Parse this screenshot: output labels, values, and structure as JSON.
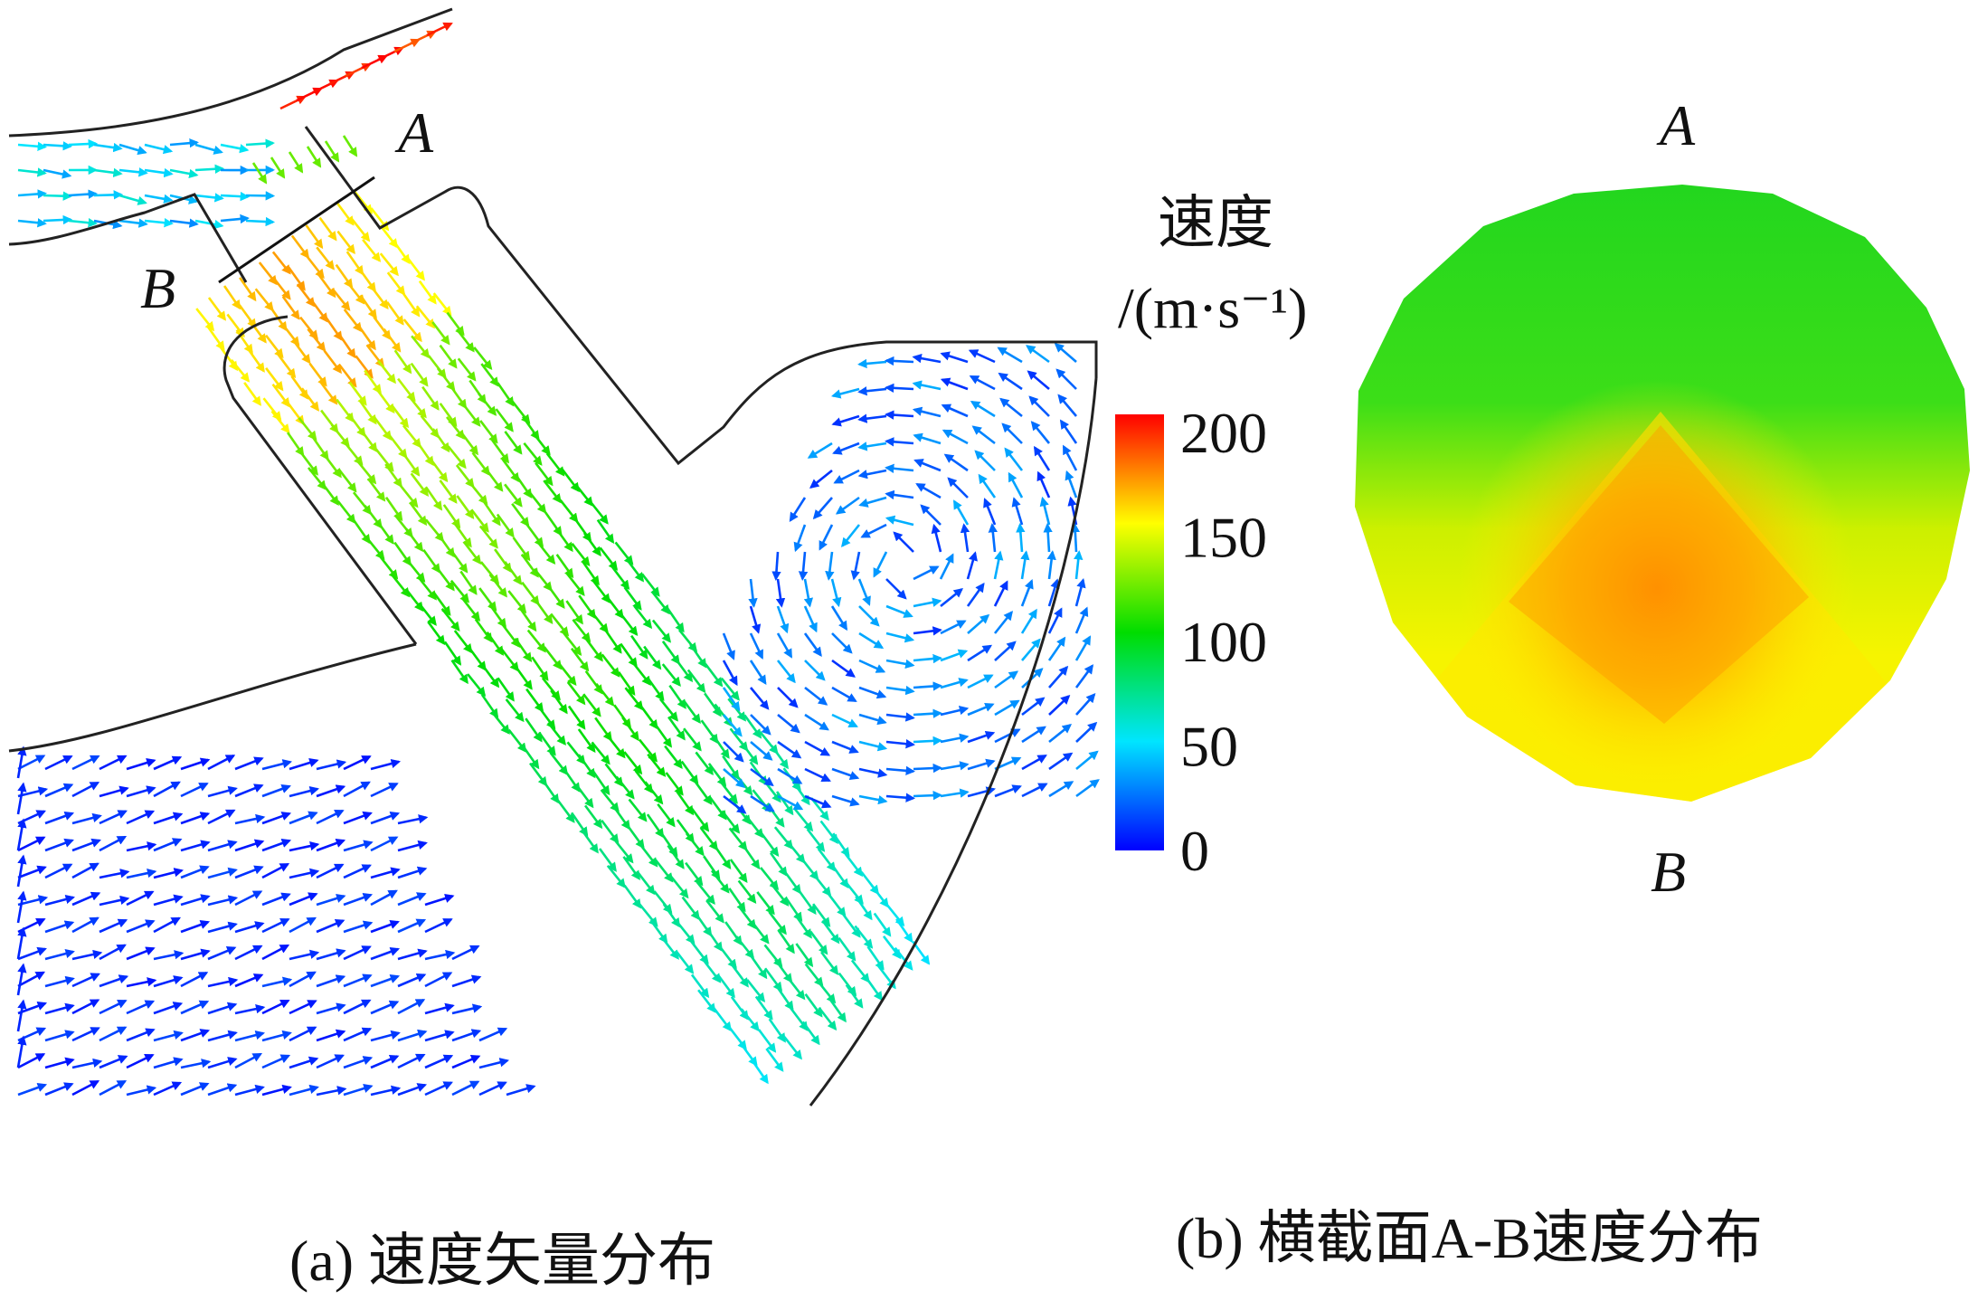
{
  "panel_a": {
    "caption": "(a) 速度矢量分布",
    "label_a": "A",
    "label_b": "B"
  },
  "legend": {
    "title_line1": "速度",
    "title_line2": "/(m·s⁻¹)",
    "ticks": [
      "200",
      "150",
      "100",
      "50",
      "0"
    ],
    "range": [
      0,
      200
    ],
    "colors": [
      "#0000ff",
      "#00e5ff",
      "#00dd00",
      "#ffff00",
      "#ff0000"
    ]
  },
  "panel_b": {
    "caption": "(b) 横截面A-B速度分布",
    "label_a": "A",
    "label_b": "B"
  }
}
